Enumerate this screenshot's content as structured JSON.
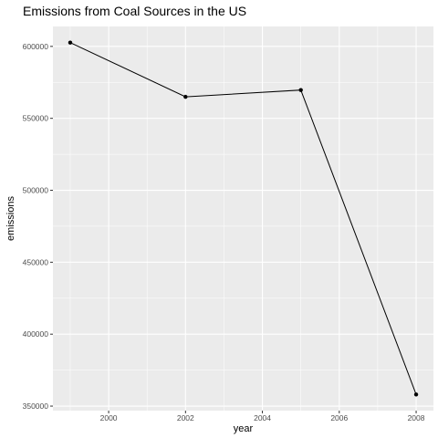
{
  "chart_data": {
    "type": "line",
    "title": "Emissions from Coal Sources in the US",
    "xlabel": "year",
    "ylabel": "emissions",
    "x": [
      1999,
      2002,
      2005,
      2008
    ],
    "values": [
      602624,
      564940,
      569655,
      358083
    ],
    "xlim": [
      1998.55,
      2008.45
    ],
    "ylim": [
      346856,
      613850
    ],
    "x_ticks": [
      2000,
      2002,
      2004,
      2006,
      2008
    ],
    "x_tick_labels": [
      "2000",
      "2002",
      "2004",
      "2006",
      "2008"
    ],
    "y_ticks": [
      350000,
      400000,
      450000,
      500000,
      550000,
      600000
    ],
    "y_tick_labels": [
      "350000",
      "400000",
      "450000",
      "500000",
      "550000",
      "600000"
    ],
    "grid": true,
    "legend": "none",
    "colors": {
      "panel": "#ebebeb",
      "grid": "#ffffff",
      "line": "#000000",
      "text": "#000000",
      "tick_text": "#4d4d4d"
    }
  }
}
